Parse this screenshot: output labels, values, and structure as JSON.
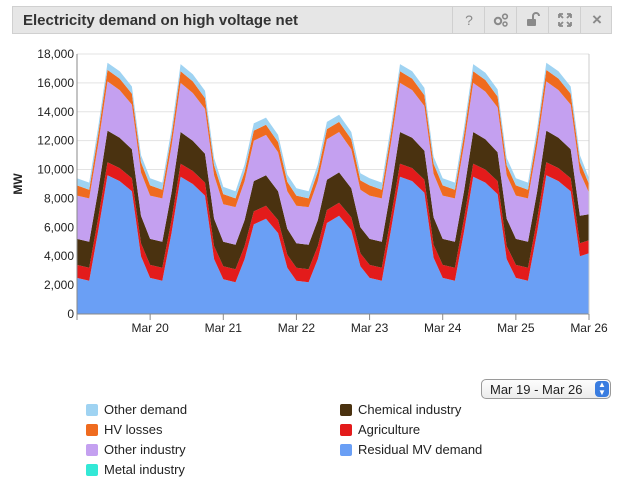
{
  "header": {
    "title": "Electricity demand on high voltage net"
  },
  "toolbar": {
    "help_icon": "?",
    "settings_icon": "gears-icon",
    "unlock_icon": "unlock-icon",
    "expand_icon": "expand-icon",
    "close_icon": "×"
  },
  "range_select": {
    "value": "Mar 19 - Mar 26"
  },
  "chart_data": {
    "type": "area",
    "stacked": true,
    "title": "",
    "xlabel": "",
    "ylabel": "MW",
    "ylim": [
      0,
      18000
    ],
    "yticks": [
      "0",
      "2,000",
      "4,000",
      "6,000",
      "8,000",
      "10,000",
      "12,000",
      "14,000",
      "16,000",
      "18,000"
    ],
    "xlim": [
      "2024-03-19T00:00",
      "2024-03-26T00:00"
    ],
    "xticks": [
      {
        "x": "2024-03-20",
        "label": "Mar 20"
      },
      {
        "x": "2024-03-21",
        "label": "Mar 21"
      },
      {
        "x": "2024-03-22",
        "label": "Mar 22"
      },
      {
        "x": "2024-03-23",
        "label": "Mar 23"
      },
      {
        "x": "2024-03-24",
        "label": "Mar 24"
      },
      {
        "x": "2024-03-25",
        "label": "Mar 25"
      },
      {
        "x": "2024-03-26",
        "label": "Mar 26"
      }
    ],
    "x": [
      "Mar 19 00:00",
      "Mar 19 04:00",
      "Mar 19 07:00",
      "Mar 19 10:00",
      "Mar 19 14:00",
      "Mar 19 18:00",
      "Mar 19 21:00",
      "Mar 20 00:00",
      "Mar 20 04:00",
      "Mar 20 07:00",
      "Mar 20 10:00",
      "Mar 20 14:00",
      "Mar 20 18:00",
      "Mar 20 21:00",
      "Mar 21 00:00",
      "Mar 21 04:00",
      "Mar 21 07:00",
      "Mar 21 10:00",
      "Mar 21 14:00",
      "Mar 21 18:00",
      "Mar 21 21:00",
      "Mar 22 00:00",
      "Mar 22 04:00",
      "Mar 22 07:00",
      "Mar 22 10:00",
      "Mar 22 14:00",
      "Mar 22 18:00",
      "Mar 22 21:00",
      "Mar 23 00:00",
      "Mar 23 04:00",
      "Mar 23 07:00",
      "Mar 23 10:00",
      "Mar 23 14:00",
      "Mar 23 18:00",
      "Mar 23 21:00",
      "Mar 24 00:00",
      "Mar 24 04:00",
      "Mar 24 07:00",
      "Mar 24 10:00",
      "Mar 24 14:00",
      "Mar 24 18:00",
      "Mar 24 21:00",
      "Mar 25 00:00",
      "Mar 25 04:00",
      "Mar 25 07:00",
      "Mar 25 10:00",
      "Mar 25 14:00",
      "Mar 25 18:00",
      "Mar 25 21:00",
      "Mar 26 00:00"
    ],
    "series": [
      {
        "name": "Residual MV demand",
        "color": "#6a9ff5",
        "values": [
          2500,
          2300,
          5800,
          9600,
          9200,
          8500,
          4000,
          2500,
          2300,
          5600,
          9500,
          9000,
          8200,
          3800,
          2400,
          2200,
          3800,
          6200,
          6600,
          5600,
          3200,
          2300,
          2200,
          3800,
          6300,
          6800,
          5800,
          3300,
          2500,
          2300,
          5800,
          9500,
          9200,
          8400,
          3900,
          2500,
          2300,
          5700,
          9500,
          9100,
          8300,
          3800,
          2500,
          2300,
          5700,
          9600,
          9200,
          8500,
          4000,
          4200
        ]
      },
      {
        "name": "Agriculture",
        "color": "#e31b1b",
        "values": [
          900,
          900,
          900,
          900,
          900,
          900,
          900,
          900,
          900,
          900,
          900,
          900,
          900,
          900,
          900,
          900,
          900,
          900,
          900,
          900,
          900,
          900,
          900,
          900,
          900,
          900,
          900,
          900,
          900,
          900,
          900,
          900,
          900,
          900,
          900,
          900,
          900,
          900,
          900,
          900,
          900,
          900,
          900,
          900,
          900,
          900,
          900,
          900,
          900,
          900
        ]
      },
      {
        "name": "Metal industry",
        "color": "#33e8d6",
        "values": [
          0,
          0,
          0,
          0,
          0,
          0,
          0,
          0,
          0,
          0,
          0,
          0,
          0,
          0,
          0,
          0,
          0,
          0,
          0,
          0,
          0,
          0,
          0,
          0,
          0,
          0,
          0,
          0,
          0,
          0,
          0,
          0,
          0,
          0,
          0,
          0,
          0,
          0,
          0,
          0,
          0,
          0,
          0,
          0,
          0,
          0,
          0,
          0,
          0,
          0
        ]
      },
      {
        "name": "Chemical industry",
        "color": "#4a3210",
        "values": [
          1800,
          1800,
          1900,
          2200,
          2100,
          2000,
          1900,
          1800,
          1800,
          1900,
          2200,
          2100,
          2000,
          1900,
          1700,
          1700,
          1800,
          2100,
          2100,
          2000,
          1800,
          1700,
          1700,
          1800,
          2100,
          2100,
          2000,
          1800,
          1800,
          1800,
          1900,
          2200,
          2100,
          2000,
          1900,
          1800,
          1800,
          1900,
          2200,
          2100,
          2000,
          1900,
          1800,
          1800,
          1900,
          2200,
          2100,
          2000,
          1900,
          1800
        ]
      },
      {
        "name": "Other industry",
        "color": "#c4a0f0",
        "values": [
          3000,
          3000,
          3200,
          3400,
          3300,
          3100,
          3000,
          3000,
          3000,
          3200,
          3400,
          3300,
          3100,
          3000,
          2600,
          2600,
          2700,
          2800,
          2800,
          2700,
          2600,
          2600,
          2600,
          2700,
          2800,
          2800,
          2700,
          2600,
          3000,
          3000,
          3200,
          3400,
          3300,
          3100,
          3000,
          3000,
          3000,
          3200,
          3400,
          3300,
          3100,
          3000,
          3000,
          3000,
          3200,
          3400,
          3300,
          3100,
          3000,
          1500
        ]
      },
      {
        "name": "HV losses",
        "color": "#ef6b1f",
        "values": [
          700,
          600,
          700,
          800,
          800,
          750,
          700,
          700,
          600,
          700,
          800,
          800,
          750,
          700,
          700,
          600,
          650,
          700,
          700,
          700,
          650,
          700,
          600,
          650,
          700,
          700,
          700,
          650,
          700,
          600,
          700,
          800,
          800,
          750,
          700,
          700,
          600,
          700,
          800,
          800,
          750,
          700,
          700,
          600,
          700,
          800,
          800,
          750,
          700,
          600
        ]
      },
      {
        "name": "Other demand",
        "color": "#9fd3f2",
        "values": [
          500,
          500,
          500,
          500,
          500,
          500,
          500,
          500,
          500,
          500,
          500,
          500,
          500,
          500,
          500,
          500,
          500,
          500,
          500,
          500,
          500,
          500,
          500,
          500,
          500,
          500,
          500,
          500,
          500,
          500,
          500,
          500,
          500,
          500,
          500,
          500,
          500,
          500,
          500,
          500,
          500,
          500,
          500,
          500,
          500,
          500,
          500,
          500,
          500,
          400
        ]
      }
    ],
    "legend": [
      {
        "label": "Other demand",
        "color": "#9fd3f2"
      },
      {
        "label": "HV losses",
        "color": "#ef6b1f"
      },
      {
        "label": "Other industry",
        "color": "#c4a0f0"
      },
      {
        "label": "Metal industry",
        "color": "#33e8d6"
      },
      {
        "label": "Chemical industry",
        "color": "#4a3210"
      },
      {
        "label": "Agriculture",
        "color": "#e31b1b"
      },
      {
        "label": "Residual MV demand",
        "color": "#6a9ff5"
      }
    ],
    "legend_position": "bottom",
    "grid": "horizontal"
  }
}
